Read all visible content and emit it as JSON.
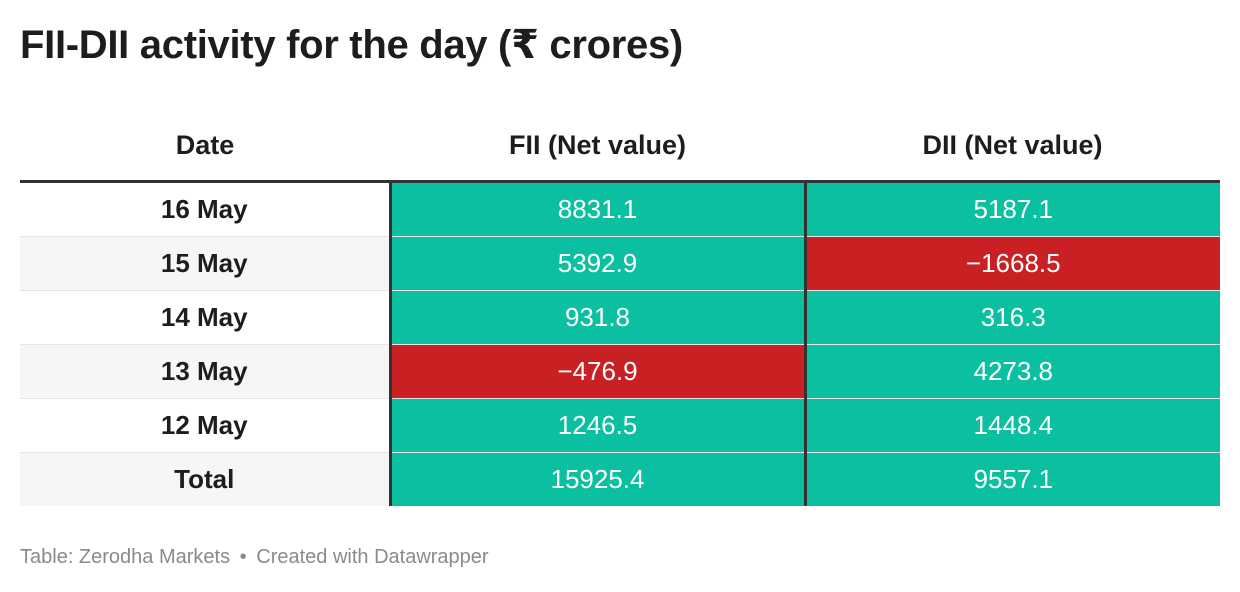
{
  "title": "FII-DII activity for the day (₹ crores)",
  "colors": {
    "positive": "#0bbfa1",
    "negative": "#c82023",
    "divider": "#333333"
  },
  "chart_data": {
    "type": "table",
    "columns": [
      "Date",
      "FII (Net value)",
      "DII (Net value)"
    ],
    "rows": [
      {
        "date": "16 May",
        "fii": "8831.1",
        "dii": "5187.1"
      },
      {
        "date": "15 May",
        "fii": "5392.9",
        "dii": "−1668.5"
      },
      {
        "date": "14 May",
        "fii": "931.8",
        "dii": "316.3"
      },
      {
        "date": "13 May",
        "fii": "−476.9",
        "dii": "4273.8"
      },
      {
        "date": "12 May",
        "fii": "1246.5",
        "dii": "1448.4"
      },
      {
        "date": "Total",
        "fii": "15925.4",
        "dii": "9557.1"
      }
    ]
  },
  "footer": {
    "source": "Table: Zerodha Markets",
    "separator": "•",
    "credit": "Created with Datawrapper"
  }
}
